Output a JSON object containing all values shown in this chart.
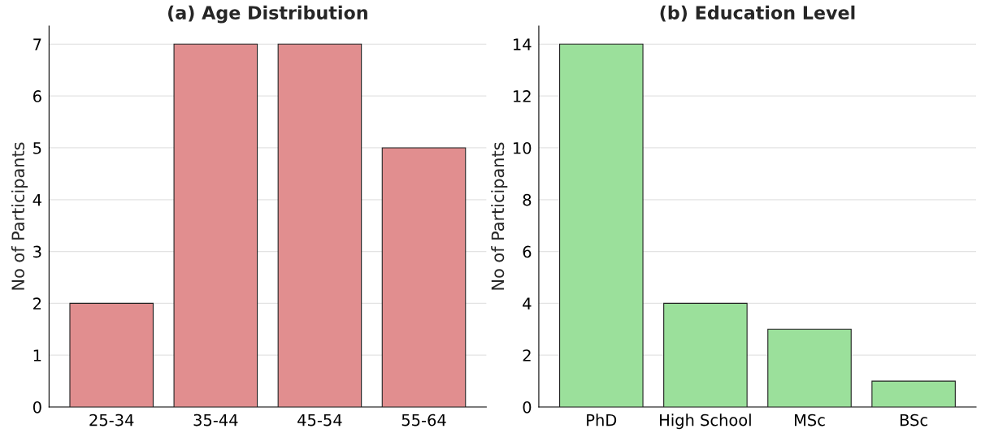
{
  "chart_data": [
    {
      "type": "bar",
      "title": "(a) Age Distribution",
      "ylabel": "No of Participants",
      "categories": [
        "25-34",
        "35-44",
        "45-54",
        "55-64"
      ],
      "values": [
        2,
        7,
        7,
        5
      ],
      "color": "#e18e8f",
      "ylim": [
        0,
        7.35
      ],
      "yticks": [
        0,
        1,
        2,
        3,
        4,
        5,
        6,
        7
      ],
      "grid": "y"
    },
    {
      "type": "bar",
      "title": "(b) Education Level",
      "ylabel": "No of Participants",
      "categories": [
        "PhD",
        "High School",
        "MSc",
        "BSc"
      ],
      "values": [
        14,
        4,
        3,
        1
      ],
      "color": "#9be09b",
      "ylim": [
        0,
        14.7
      ],
      "yticks": [
        0,
        2,
        4,
        6,
        8,
        10,
        12,
        14
      ],
      "grid": "y"
    }
  ]
}
